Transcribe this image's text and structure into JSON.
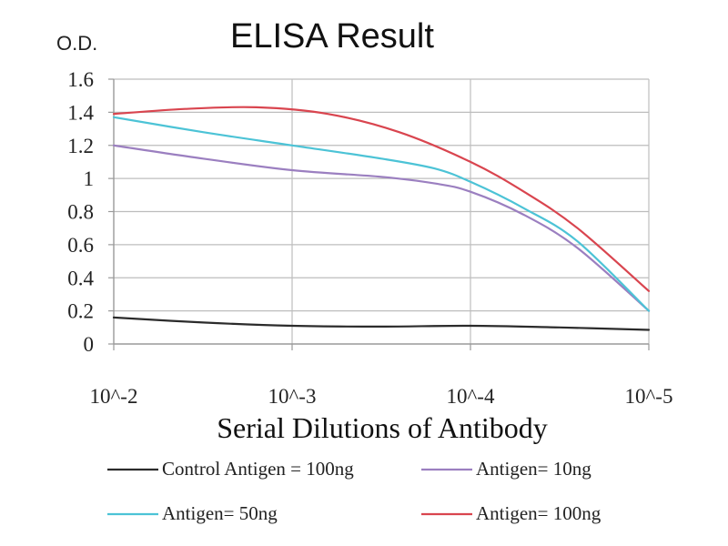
{
  "chart_data": {
    "type": "line",
    "title": "ELISA Result",
    "ylabel": "O.D.",
    "xlabel": "Serial Dilutions of Antibody",
    "categories": [
      "10^-2",
      "10^-3",
      "10^-4",
      "10^-5"
    ],
    "x_positions": [
      0,
      1,
      2,
      3
    ],
    "ylim": [
      0,
      1.6
    ],
    "yticks": [
      0,
      0.2,
      0.4,
      0.6,
      0.8,
      1,
      1.2,
      1.4,
      1.6
    ],
    "ytick_labels": [
      "0",
      "0.2",
      "0.4",
      "0.6",
      "0.8",
      "1",
      "1.2",
      "1.4",
      "1.6"
    ],
    "grid": true,
    "legend_position": "bottom",
    "series": [
      {
        "name": "Control Antigen = 100ng",
        "color": "#2b2b2b",
        "points": [
          [
            0,
            0.16
          ],
          [
            0.5,
            0.13
          ],
          [
            1,
            0.11
          ],
          [
            1.5,
            0.105
          ],
          [
            2,
            0.11
          ],
          [
            2.5,
            0.1
          ],
          [
            3,
            0.085
          ]
        ]
      },
      {
        "name": "Antigen= 10ng",
        "color": "#9b7fc0",
        "points": [
          [
            0,
            1.2
          ],
          [
            0.5,
            1.12
          ],
          [
            1,
            1.05
          ],
          [
            1.5,
            1.01
          ],
          [
            1.8,
            0.97
          ],
          [
            2,
            0.92
          ],
          [
            2.3,
            0.78
          ],
          [
            2.6,
            0.58
          ],
          [
            3,
            0.2
          ]
        ]
      },
      {
        "name": "Antigen= 50ng",
        "color": "#4cc3d6",
        "points": [
          [
            0,
            1.37
          ],
          [
            0.5,
            1.28
          ],
          [
            1,
            1.2
          ],
          [
            1.5,
            1.12
          ],
          [
            1.8,
            1.06
          ],
          [
            2,
            0.98
          ],
          [
            2.3,
            0.82
          ],
          [
            2.6,
            0.62
          ],
          [
            3,
            0.2
          ]
        ]
      },
      {
        "name": "Antigen= 100ng",
        "color": "#d9454f",
        "points": [
          [
            0,
            1.39
          ],
          [
            0.4,
            1.42
          ],
          [
            0.8,
            1.43
          ],
          [
            1.2,
            1.39
          ],
          [
            1.6,
            1.28
          ],
          [
            2,
            1.1
          ],
          [
            2.3,
            0.92
          ],
          [
            2.6,
            0.7
          ],
          [
            3,
            0.32
          ]
        ]
      }
    ]
  }
}
